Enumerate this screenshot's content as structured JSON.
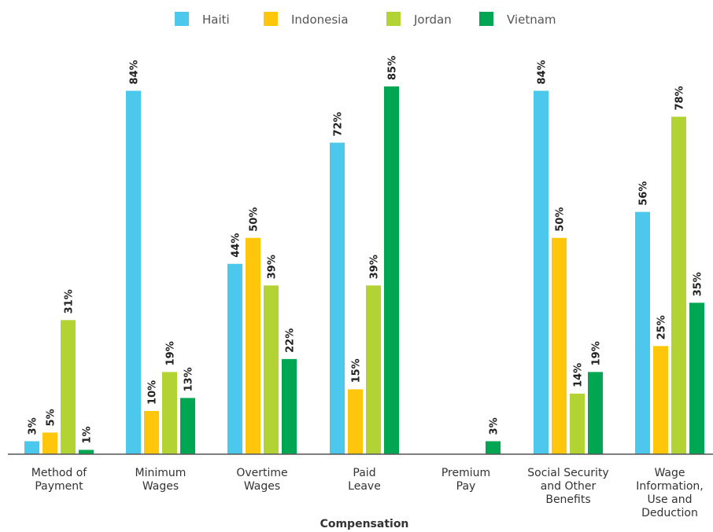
{
  "chart_data": {
    "type": "bar",
    "xlabel": "Compensation",
    "ylabel": "",
    "ylim": [
      0,
      85
    ],
    "grid": false,
    "legend_position": "top-center",
    "categories": [
      [
        "Method of",
        "Payment"
      ],
      [
        "Minimum",
        "Wages"
      ],
      [
        "Overtime",
        "Wages"
      ],
      [
        "Paid",
        "Leave"
      ],
      [
        "Premium",
        "Pay"
      ],
      [
        "Social Security",
        "and Other",
        "Benefits"
      ],
      [
        "Wage",
        "Information,",
        "Use and",
        "Deduction"
      ]
    ],
    "series": [
      {
        "name": "Haiti",
        "color": "#4CC8EC",
        "values": [
          3,
          84,
          44,
          72,
          null,
          84,
          56
        ],
        "labels": [
          "3%",
          "84%",
          "44%",
          "72%",
          "",
          "84%",
          "56%"
        ]
      },
      {
        "name": "Indonesia",
        "color": "#FFC60B",
        "values": [
          5,
          10,
          50,
          15,
          null,
          50,
          25
        ],
        "labels": [
          "5%",
          "10%",
          "50%",
          "15%",
          "",
          "50%",
          "25%"
        ]
      },
      {
        "name": "Jordan",
        "color": "#B3D334",
        "values": [
          31,
          19,
          39,
          39,
          null,
          14,
          78
        ],
        "labels": [
          "31%",
          "19%",
          "39%",
          "39%",
          "",
          "14%",
          "78%"
        ]
      },
      {
        "name": "Vietnam",
        "color": "#00A651",
        "values": [
          1,
          13,
          22,
          85,
          3,
          19,
          35
        ],
        "labels": [
          "1%",
          "13%",
          "22%",
          "85%",
          "3%",
          "19%",
          "35%"
        ]
      }
    ]
  }
}
